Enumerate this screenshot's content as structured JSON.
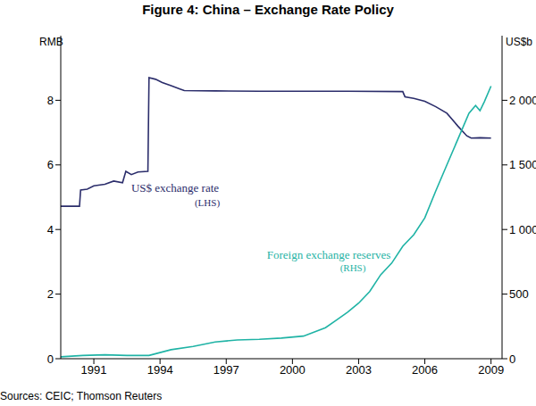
{
  "chart_data": {
    "type": "line",
    "title": "Figure 4: China – Exchange Rate Policy",
    "y_label": "RMB",
    "y2_label": "US$b",
    "source": "Sources: CEIC; Thomson Reuters",
    "annotations": [
      "(LHS)",
      "(RHS)"
    ],
    "xlim": [
      1990,
      2010
    ],
    "xticks": [
      {
        "value": 1991.5,
        "label": "1991"
      },
      {
        "value": 1994.5,
        "label": "1994"
      },
      {
        "value": 1997.5,
        "label": "1997"
      },
      {
        "value": 2000.5,
        "label": "2000"
      },
      {
        "value": 2003.5,
        "label": "2003"
      },
      {
        "value": 2006.5,
        "label": "2006"
      },
      {
        "value": 2009.5,
        "label": "2009"
      }
    ],
    "ylim": [
      0,
      10
    ],
    "yticks": [
      0,
      2,
      4,
      6,
      8
    ],
    "y2lim": [
      0,
      2500
    ],
    "y2ticks": [
      0,
      500,
      {
        "value": 1000,
        "label": "1 000"
      },
      {
        "value": 1500,
        "label": "1 500"
      },
      {
        "value": 2000,
        "label": "2 000"
      }
    ],
    "grid": false,
    "series": [
      {
        "name": "US$ exchange rate",
        "color": "#2b2d6b",
        "x": [
          1990.0,
          1990.85,
          1990.9,
          1991.2,
          1991.5,
          1992.0,
          1992.4,
          1992.8,
          1992.95,
          1993.2,
          1993.5,
          1993.95,
          1994.0,
          1994.3,
          1994.6,
          1995.0,
          1995.4,
          1995.6,
          1997.0,
          1999.0,
          2001.0,
          2003.0,
          2005.5,
          2005.6,
          2006.0,
          2006.5,
          2007.0,
          2007.5,
          2008.0,
          2008.4,
          2008.6,
          2009.0,
          2009.5
        ],
        "values": [
          4.72,
          4.72,
          5.22,
          5.25,
          5.35,
          5.4,
          5.5,
          5.45,
          5.8,
          5.7,
          5.78,
          5.8,
          8.7,
          8.65,
          8.55,
          8.45,
          8.35,
          8.3,
          8.29,
          8.28,
          8.28,
          8.28,
          8.27,
          8.11,
          8.06,
          7.97,
          7.8,
          7.6,
          7.2,
          6.9,
          6.83,
          6.84,
          6.83
        ]
      },
      {
        "name": "Foreign exchange reserves",
        "color": "#1fb3a5",
        "axis": "y2",
        "x": [
          1990,
          1991,
          1992,
          1993,
          1994,
          1995,
          1996,
          1997,
          1998,
          1999,
          2000,
          2001,
          2002,
          2002.5,
          2003,
          2003.5,
          2004,
          2004.5,
          2005,
          2005.5,
          2006,
          2006.5,
          2007,
          2007.5,
          2008,
          2008.5,
          2008.8,
          2009,
          2009.2,
          2009.5
        ],
        "values": [
          15,
          25,
          30,
          25,
          25,
          70,
          95,
          130,
          145,
          150,
          160,
          175,
          240,
          300,
          360,
          430,
          520,
          650,
          740,
          870,
          960,
          1090,
          1300,
          1500,
          1700,
          1900,
          1960,
          1920,
          1990,
          2110
        ]
      }
    ]
  }
}
